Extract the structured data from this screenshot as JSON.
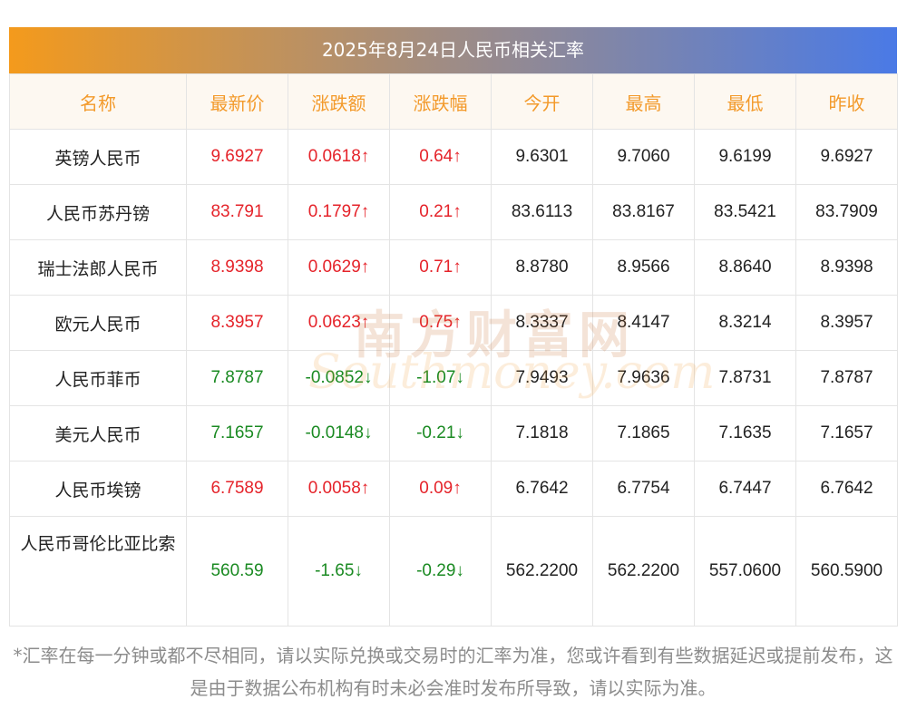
{
  "title": "2025年8月24日人民币相关汇率",
  "headers": [
    "名称",
    "最新价",
    "涨跌额",
    "涨跌幅",
    "今开",
    "最高",
    "最低",
    "昨收"
  ],
  "rows": [
    {
      "name": "英镑人民币",
      "latest": "9.6927",
      "change": "0.0618↑",
      "pct": "0.64↑",
      "open": "9.6301",
      "high": "9.7060",
      "low": "9.6199",
      "prev": "9.6927",
      "dir": "up"
    },
    {
      "name": "人民币苏丹镑",
      "latest": "83.791",
      "change": "0.1797↑",
      "pct": "0.21↑",
      "open": "83.6113",
      "high": "83.8167",
      "low": "83.5421",
      "prev": "83.7909",
      "dir": "up"
    },
    {
      "name": "瑞士法郎人民币",
      "latest": "8.9398",
      "change": "0.0629↑",
      "pct": "0.71↑",
      "open": "8.8780",
      "high": "8.9566",
      "low": "8.8640",
      "prev": "8.9398",
      "dir": "up"
    },
    {
      "name": "欧元人民币",
      "latest": "8.3957",
      "change": "0.0623↑",
      "pct": "0.75↑",
      "open": "8.3337",
      "high": "8.4147",
      "low": "8.3214",
      "prev": "8.3957",
      "dir": "up"
    },
    {
      "name": "人民币菲币",
      "latest": "7.8787",
      "change": "-0.0852↓",
      "pct": "-1.07↓",
      "open": "7.9493",
      "high": "7.9636",
      "low": "7.8731",
      "prev": "7.8787",
      "dir": "down"
    },
    {
      "name": "美元人民币",
      "latest": "7.1657",
      "change": "-0.0148↓",
      "pct": "-0.21↓",
      "open": "7.1818",
      "high": "7.1865",
      "low": "7.1635",
      "prev": "7.1657",
      "dir": "down"
    },
    {
      "name": "人民币埃镑",
      "latest": "6.7589",
      "change": "0.0058↑",
      "pct": "0.09↑",
      "open": "6.7642",
      "high": "6.7754",
      "low": "6.7447",
      "prev": "6.7642",
      "dir": "up"
    },
    {
      "name": "人民币哥伦比亚比索",
      "latest": "560.59",
      "change": "-1.65↓",
      "pct": "-0.29↓",
      "open": "562.2200",
      "high": "562.2200",
      "low": "557.0600",
      "prev": "560.5900",
      "dir": "down"
    }
  ],
  "watermark": {
    "cn": "南方财富网",
    "en": "Southmoney.com"
  },
  "footnote": "*汇率在每一分钟或都不尽相同，请以实际兑换或交易时的汇率为准，您或许看到有些数据延迟或提前发布，这是由于数据公布机构有时未必会准时发布所导致，请以实际为准。",
  "colors": {
    "up": "#e5232a",
    "down": "#1a8a22",
    "header": "#f39a2b"
  }
}
